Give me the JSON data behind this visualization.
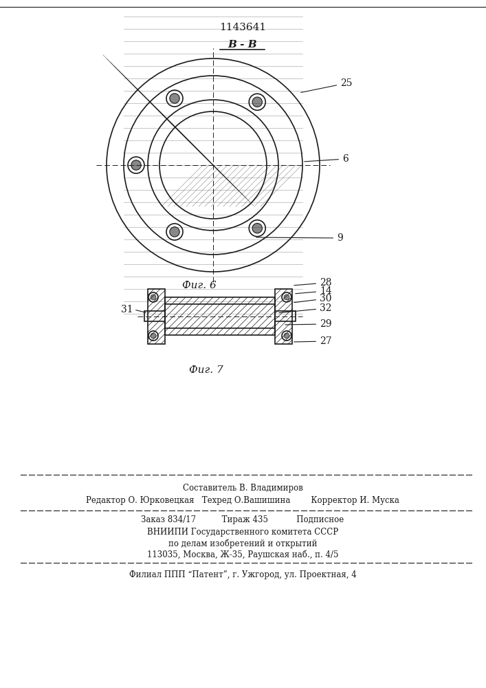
{
  "patent_number": "1143641",
  "bg_color": "#ffffff",
  "line_color": "#1a1a1a",
  "fig6_label": "Фиг. 6",
  "fig7_label": "Фиг. 7",
  "section_label": "В - В",
  "label_25": "25",
  "label_6": "6",
  "label_9": "9",
  "label_27": "27",
  "label_29": "29",
  "label_31": "31",
  "label_32": "32",
  "label_30": "30",
  "label_14": "14",
  "label_28": "28",
  "footer_line1": "Составитель В. Владимиров",
  "footer_line2": "Редактор О. Юрковецкая   Техред О.Вашишина        Корректор И. Муска",
  "footer_line3": "Заказ 834/17          Тираж 435           Подписное",
  "footer_line4": "ВНИИПИ Государственного комитета СССР",
  "footer_line5": "по делам изобретений и открытий",
  "footer_line6": "113035, Москва, Ж-35, Раушская наб., п. 4/5",
  "footer_line7": "Филиал ППП “Патент”, г. Ужгород, ул. Проектная, 4"
}
